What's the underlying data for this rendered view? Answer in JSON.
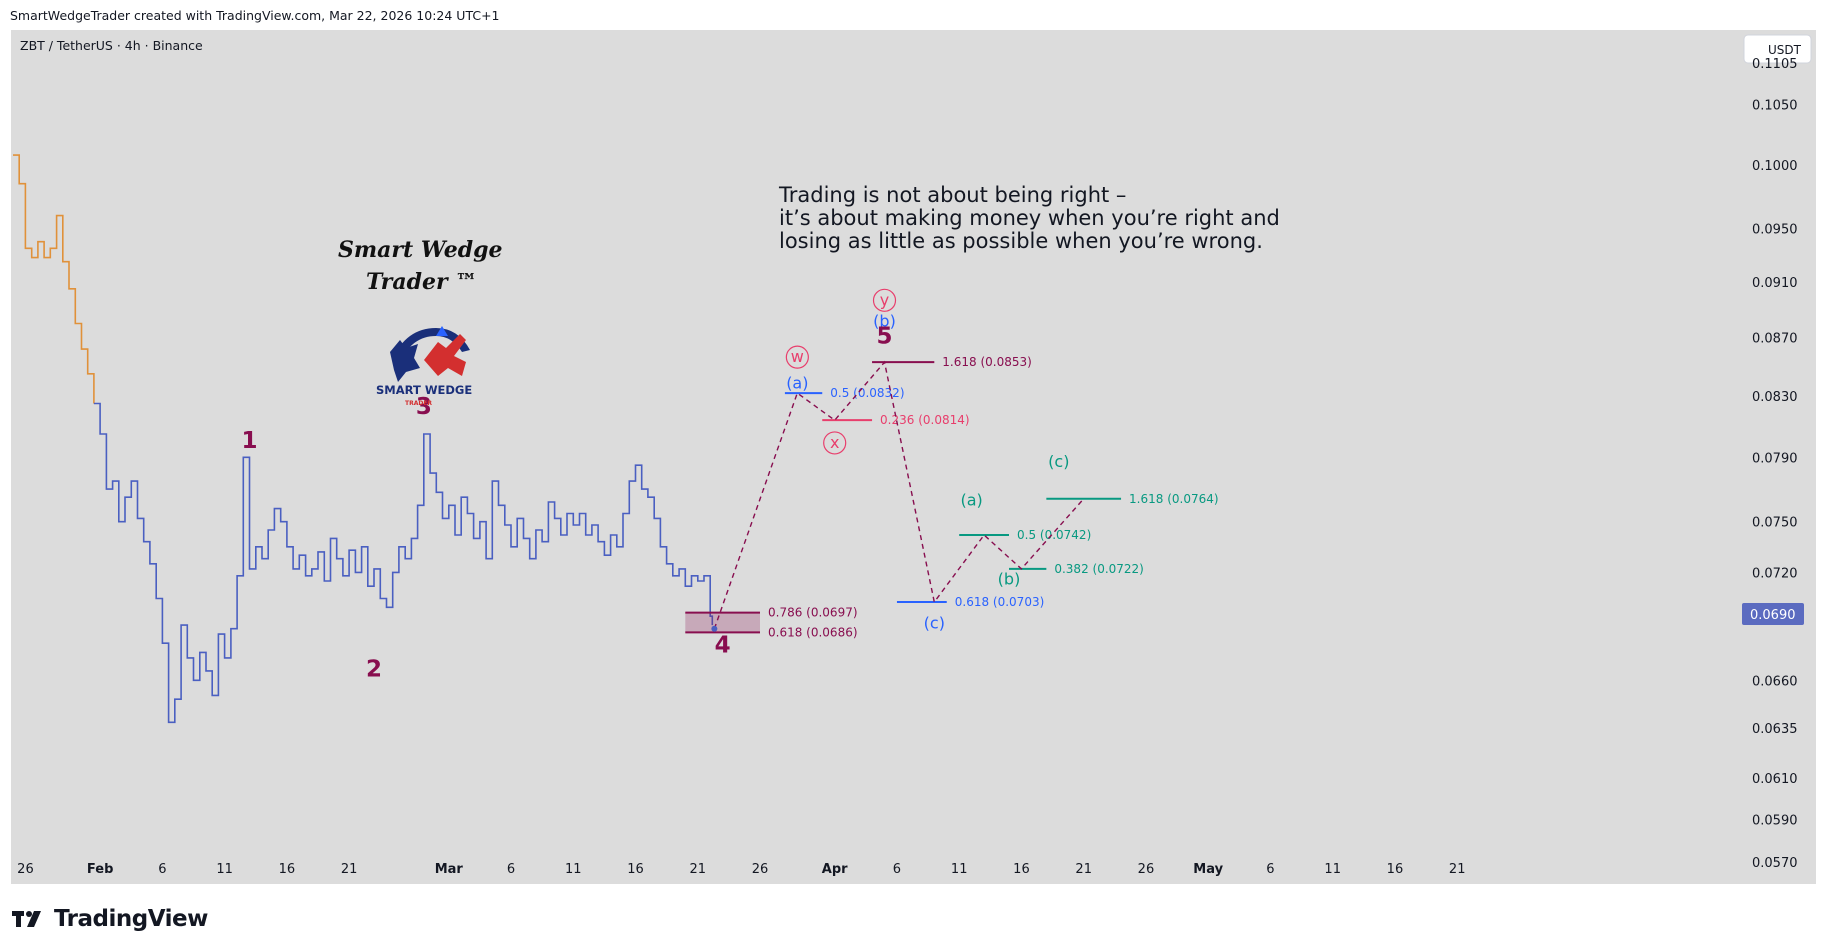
{
  "header": {
    "attribution": "SmartWedgeTrader created with TradingView.com, Mar 22, 2026 10:24 UTC+1"
  },
  "symbol_info": "ZBT / TetherUS · 4h · Binance",
  "currency_button": "USDT",
  "current_price": "0.0690",
  "footer": {
    "wordmark": "TradingView"
  },
  "brand": {
    "script_line1": "Smart Wedge",
    "script_line2": "Trader ™",
    "logo_text": "SMART WEDGE",
    "logo_subtext": "TRADER"
  },
  "quote": [
    "Trading is not about being right –",
    "it’s about making money when you’re right and",
    "losing as little as possible when you’re wrong."
  ],
  "colors": {
    "background": "#dcdcdc",
    "price_up_old": "#e0913a",
    "price_recent": "#4a5fc1",
    "primary_wave": "#880e4f",
    "wxy_pink": "#e83e6c",
    "abc_blue": "#2962ff",
    "abc_teal": "#089981",
    "price_badge": "#5b6bc0"
  },
  "chart_data": {
    "type": "line",
    "title": "",
    "xlabel": "",
    "ylabel": "",
    "ylim": [
      0.056,
      0.1115
    ],
    "y_scale": "log",
    "y_ticks": [
      "0.1050",
      "0.1000",
      "0.0950",
      "0.0910",
      "0.0870",
      "0.0830",
      "0.0790",
      "0.0750",
      "0.0720",
      "0.0690",
      "0.0660",
      "0.0635",
      "0.0610",
      "0.0590",
      "0.0570"
    ],
    "x_range": [
      "2026-01-25",
      "2026-05-23"
    ],
    "x_ticks": [
      {
        "date": "2026-01-26",
        "label": "26",
        "bold": false
      },
      {
        "date": "2026-02-01",
        "label": "Feb",
        "bold": true
      },
      {
        "date": "2026-02-06",
        "label": "6",
        "bold": false
      },
      {
        "date": "2026-02-11",
        "label": "11",
        "bold": false
      },
      {
        "date": "2026-02-16",
        "label": "16",
        "bold": false
      },
      {
        "date": "2026-02-21",
        "label": "21",
        "bold": false
      },
      {
        "date": "2026-03-01",
        "label": "Mar",
        "bold": true
      },
      {
        "date": "2026-03-06",
        "label": "6",
        "bold": false
      },
      {
        "date": "2026-03-11",
        "label": "11",
        "bold": false
      },
      {
        "date": "2026-03-16",
        "label": "16",
        "bold": false
      },
      {
        "date": "2026-03-21",
        "label": "21",
        "bold": false
      },
      {
        "date": "2026-03-26",
        "label": "26",
        "bold": false
      },
      {
        "date": "2026-04-01",
        "label": "Apr",
        "bold": true
      },
      {
        "date": "2026-04-06",
        "label": "6",
        "bold": false
      },
      {
        "date": "2026-04-11",
        "label": "11",
        "bold": false
      },
      {
        "date": "2026-04-16",
        "label": "16",
        "bold": false
      },
      {
        "date": "2026-04-21",
        "label": "21",
        "bold": false
      },
      {
        "date": "2026-04-26",
        "label": "26",
        "bold": false
      },
      {
        "date": "2026-05-01",
        "label": "May",
        "bold": true
      },
      {
        "date": "2026-05-06",
        "label": "6",
        "bold": false
      },
      {
        "date": "2026-05-11",
        "label": "11",
        "bold": false
      },
      {
        "date": "2026-05-16",
        "label": "16",
        "bold": false
      },
      {
        "date": "2026-05-21",
        "label": "21",
        "bold": false
      }
    ],
    "series": [
      {
        "points": [
          [
            "2026-01-25",
            0.1008
          ],
          [
            "2026-01-25T12",
            0.0985
          ],
          [
            "2026-01-26",
            0.0935
          ],
          [
            "2026-01-26T12",
            0.0928
          ],
          [
            "2026-01-27",
            0.094
          ],
          [
            "2026-01-27T12",
            0.0928
          ],
          [
            "2026-01-28",
            0.0935
          ],
          [
            "2026-01-28T12",
            0.096
          ],
          [
            "2026-01-29",
            0.0925
          ],
          [
            "2026-01-29T12",
            0.0905
          ],
          [
            "2026-01-30",
            0.088
          ],
          [
            "2026-01-30T12",
            0.0862
          ],
          [
            "2026-01-31",
            0.0845
          ],
          [
            "2026-01-31T12",
            0.0825
          ],
          [
            "2026-02-01",
            0.0805
          ],
          [
            "2026-02-01T12",
            0.077
          ],
          [
            "2026-02-02",
            0.0775
          ],
          [
            "2026-02-02T12",
            0.075
          ],
          [
            "2026-02-03",
            0.0765
          ],
          [
            "2026-02-03T12",
            0.0775
          ],
          [
            "2026-02-04",
            0.0752
          ],
          [
            "2026-02-04T12",
            0.0738
          ],
          [
            "2026-02-05",
            0.0725
          ],
          [
            "2026-02-05T12",
            0.0705
          ],
          [
            "2026-02-06",
            0.068
          ],
          [
            "2026-02-06T12",
            0.0638
          ],
          [
            "2026-02-07",
            0.065
          ],
          [
            "2026-02-07T12",
            0.069
          ],
          [
            "2026-02-08",
            0.0672
          ],
          [
            "2026-02-08T12",
            0.066
          ],
          [
            "2026-02-09",
            0.0675
          ],
          [
            "2026-02-09T12",
            0.0665
          ],
          [
            "2026-02-10",
            0.0652
          ],
          [
            "2026-02-10T12",
            0.0685
          ],
          [
            "2026-02-11",
            0.0672
          ],
          [
            "2026-02-11T12",
            0.0688
          ],
          [
            "2026-02-12",
            0.0718
          ],
          [
            "2026-02-12T12",
            0.079
          ],
          [
            "2026-02-13",
            0.0722
          ],
          [
            "2026-02-13T12",
            0.0735
          ],
          [
            "2026-02-14",
            0.0728
          ],
          [
            "2026-02-14T12",
            0.0745
          ],
          [
            "2026-02-15",
            0.0758
          ],
          [
            "2026-02-15T12",
            0.075
          ],
          [
            "2026-02-16",
            0.0735
          ],
          [
            "2026-02-16T12",
            0.0722
          ],
          [
            "2026-02-17",
            0.073
          ],
          [
            "2026-02-17T12",
            0.0718
          ],
          [
            "2026-02-18",
            0.0722
          ],
          [
            "2026-02-18T12",
            0.0732
          ],
          [
            "2026-02-19",
            0.0715
          ],
          [
            "2026-02-19T12",
            0.074
          ],
          [
            "2026-02-20",
            0.0728
          ],
          [
            "2026-02-20T12",
            0.0718
          ],
          [
            "2026-02-21",
            0.0733
          ],
          [
            "2026-02-21T12",
            0.072
          ],
          [
            "2026-02-22",
            0.0735
          ],
          [
            "2026-02-22T12",
            0.0712
          ],
          [
            "2026-02-23",
            0.0722
          ],
          [
            "2026-02-23T12",
            0.0705
          ],
          [
            "2026-02-24",
            0.07
          ],
          [
            "2026-02-24T12",
            0.072
          ],
          [
            "2026-02-25",
            0.0735
          ],
          [
            "2026-02-25T12",
            0.0728
          ],
          [
            "2026-02-26",
            0.074
          ],
          [
            "2026-02-26T12",
            0.076
          ],
          [
            "2026-02-27",
            0.0805
          ],
          [
            "2026-02-27T12",
            0.078
          ],
          [
            "2026-02-28",
            0.0768
          ],
          [
            "2026-02-28T12",
            0.0752
          ],
          [
            "2026-03-01",
            0.076
          ],
          [
            "2026-03-01T12",
            0.0742
          ],
          [
            "2026-03-02",
            0.0765
          ],
          [
            "2026-03-02T12",
            0.0755
          ],
          [
            "2026-03-03",
            0.074
          ],
          [
            "2026-03-03T12",
            0.075
          ],
          [
            "2026-03-04",
            0.0728
          ],
          [
            "2026-03-04T12",
            0.0775
          ],
          [
            "2026-03-05",
            0.076
          ],
          [
            "2026-03-05T12",
            0.0748
          ],
          [
            "2026-03-06",
            0.0735
          ],
          [
            "2026-03-06T12",
            0.0752
          ],
          [
            "2026-03-07",
            0.074
          ],
          [
            "2026-03-07T12",
            0.0728
          ],
          [
            "2026-03-08",
            0.0745
          ],
          [
            "2026-03-08T12",
            0.0738
          ],
          [
            "2026-03-09",
            0.0762
          ],
          [
            "2026-03-09T12",
            0.0752
          ],
          [
            "2026-03-10",
            0.0742
          ],
          [
            "2026-03-10T12",
            0.0755
          ],
          [
            "2026-03-11",
            0.0748
          ],
          [
            "2026-03-11T12",
            0.0755
          ],
          [
            "2026-03-12",
            0.0742
          ],
          [
            "2026-03-12T12",
            0.0748
          ],
          [
            "2026-03-13",
            0.0738
          ],
          [
            "2026-03-13T12",
            0.073
          ],
          [
            "2026-03-14",
            0.0742
          ],
          [
            "2026-03-14T12",
            0.0735
          ],
          [
            "2026-03-15",
            0.0755
          ],
          [
            "2026-03-15T12",
            0.0775
          ],
          [
            "2026-03-16",
            0.0785
          ],
          [
            "2026-03-16T12",
            0.077
          ],
          [
            "2026-03-17",
            0.0765
          ],
          [
            "2026-03-17T12",
            0.0752
          ],
          [
            "2026-03-18",
            0.0735
          ],
          [
            "2026-03-18T12",
            0.0725
          ],
          [
            "2026-03-19",
            0.0718
          ],
          [
            "2026-03-19T12",
            0.0722
          ],
          [
            "2026-03-20",
            0.0712
          ],
          [
            "2026-03-20T12",
            0.0718
          ],
          [
            "2026-03-21",
            0.0715
          ],
          [
            "2026-03-21T12",
            0.0718
          ],
          [
            "2026-03-22",
            0.0695
          ],
          [
            "2026-03-22T04",
            0.069
          ]
        ]
      }
    ],
    "wave_labels": [
      {
        "label": "1",
        "date": "2026-02-13",
        "price": 0.0796
      },
      {
        "label": "2",
        "date": "2026-02-23",
        "price": 0.0662
      },
      {
        "label": "3",
        "date": "2026-02-27",
        "price": 0.0818
      },
      {
        "label": "4",
        "date": "2026-03-23",
        "price": 0.0675
      },
      {
        "label": "5",
        "date": "2026-04-05",
        "price": 0.0866
      }
    ],
    "projection_path": [
      [
        "2026-03-22T08",
        0.0688
      ],
      [
        "2026-03-29",
        0.0832
      ],
      [
        "2026-04-01",
        0.0814
      ],
      [
        "2026-04-05",
        0.0853
      ],
      [
        "2026-04-09",
        0.0703
      ],
      [
        "2026-04-13",
        0.0742
      ],
      [
        "2026-04-16",
        0.0722
      ],
      [
        "2026-04-21",
        0.0764
      ]
    ],
    "fib_levels": [
      {
        "label": "1.618 (0.0853)",
        "price": 0.0853,
        "start": "2026-04-04",
        "end": "2026-04-09",
        "group": "primary"
      },
      {
        "label": "0.5 (0.0832)",
        "price": 0.0832,
        "start": "2026-03-28",
        "end": "2026-03-31",
        "group": "blue"
      },
      {
        "label": "0.236 (0.0814)",
        "price": 0.0814,
        "start": "2026-03-31",
        "end": "2026-04-04",
        "group": "pink"
      },
      {
        "label": "0.786 (0.0697)",
        "price": 0.0697,
        "start": "2026-03-20",
        "end": "2026-03-26",
        "group": "primary"
      },
      {
        "label": "0.618 (0.0686)",
        "price": 0.0686,
        "start": "2026-03-20",
        "end": "2026-03-26",
        "group": "primary"
      },
      {
        "label": "0.618 (0.0703)",
        "price": 0.0703,
        "start": "2026-04-06",
        "end": "2026-04-10",
        "group": "blue"
      },
      {
        "label": "0.5 (0.0742)",
        "price": 0.0742,
        "start": "2026-04-11",
        "end": "2026-04-15",
        "group": "teal"
      },
      {
        "label": "0.382 (0.0722)",
        "price": 0.0722,
        "start": "2026-04-15",
        "end": "2026-04-18",
        "group": "teal"
      },
      {
        "label": "1.618 (0.0764)",
        "price": 0.0764,
        "start": "2026-04-18",
        "end": "2026-04-24",
        "group": "teal"
      }
    ],
    "sub_wave_labels": [
      {
        "label": "w",
        "date": "2026-03-29",
        "price": 0.0853,
        "group": "pink",
        "circled": true
      },
      {
        "label": "x",
        "date": "2026-04-01",
        "price": 0.0796,
        "group": "pink",
        "circled": true
      },
      {
        "label": "y",
        "date": "2026-04-05",
        "price": 0.0893,
        "group": "pink",
        "circled": true
      },
      {
        "label": "(b)",
        "date": "2026-04-05",
        "price": 0.0878,
        "group": "blue",
        "circled": false
      },
      {
        "label": "(a)",
        "date": "2026-03-29",
        "price": 0.0835,
        "group": "blue",
        "circled": false
      },
      {
        "label": "(c)",
        "date": "2026-04-09",
        "price": 0.0688,
        "group": "blue",
        "circled": false
      },
      {
        "label": "(a)",
        "date": "2026-04-12",
        "price": 0.076,
        "group": "teal",
        "circled": false
      },
      {
        "label": "(b)",
        "date": "2026-04-15",
        "price": 0.0713,
        "group": "teal",
        "circled": false
      },
      {
        "label": "(c)",
        "date": "2026-04-19",
        "price": 0.0784,
        "group": "teal",
        "circled": false
      }
    ]
  }
}
